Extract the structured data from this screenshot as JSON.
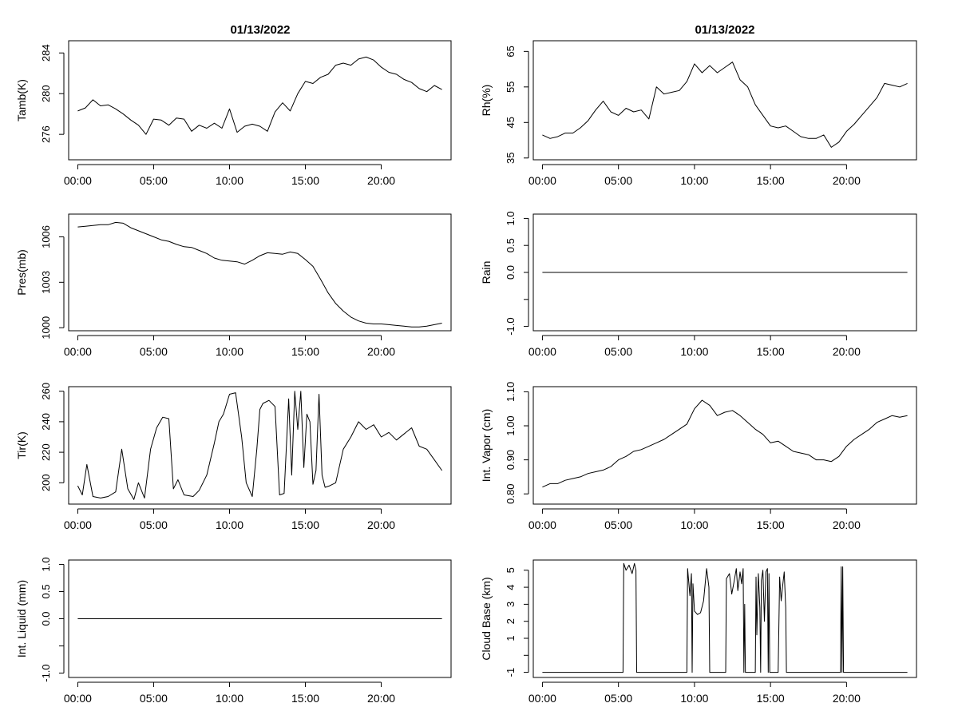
{
  "figure": {
    "titles": [
      "01/13/2022",
      "01/13/2022"
    ]
  },
  "chart_data": [
    {
      "type": "line",
      "title": "01/13/2022",
      "xlabel": "",
      "ylabel": "Tamb(K)",
      "x_ticks": [
        "00:00",
        "05:00",
        "10:00",
        "15:00",
        "20:00"
      ],
      "x_tick_values": [
        0,
        5,
        10,
        15,
        20
      ],
      "xlim": [
        -0.6,
        24.6
      ],
      "y_ticks": [
        276,
        280,
        284
      ],
      "ylim": [
        273.5,
        285.2
      ],
      "series": [
        {
          "x": [
            0,
            0.5,
            1,
            1.5,
            2,
            2.5,
            3,
            3.5,
            4,
            4.5,
            5,
            5.5,
            6,
            6.5,
            7,
            7.5,
            8,
            8.5,
            9,
            9.5,
            10,
            10.5,
            11,
            11.5,
            12,
            12.5,
            13,
            13.5,
            14,
            14.5,
            15,
            15.5,
            16,
            16.5,
            17,
            17.5,
            18,
            18.5,
            19,
            19.5,
            20,
            20.5,
            21,
            21.5,
            22,
            22.5,
            23,
            23.5,
            24
          ],
          "y": [
            278.3,
            278.6,
            279.4,
            278.8,
            278.9,
            278.5,
            278.0,
            277.4,
            276.9,
            276.0,
            277.5,
            277.4,
            276.9,
            277.6,
            277.5,
            276.3,
            276.9,
            276.6,
            277.1,
            276.6,
            278.5,
            276.2,
            276.8,
            277.0,
            276.8,
            276.3,
            278.2,
            279.1,
            278.3,
            280.0,
            281.2,
            281.0,
            281.6,
            281.9,
            282.8,
            283.0,
            282.8,
            283.4,
            283.6,
            283.3,
            282.6,
            282.1,
            281.9,
            281.4,
            281.1,
            280.5,
            280.2,
            280.8,
            280.4
          ]
        }
      ]
    },
    {
      "type": "line",
      "title": "01/13/2022",
      "xlabel": "",
      "ylabel": "Rh(%)",
      "x_ticks": [
        "00:00",
        "05:00",
        "10:00",
        "15:00",
        "20:00"
      ],
      "x_tick_values": [
        0,
        5,
        10,
        15,
        20
      ],
      "xlim": [
        -0.6,
        24.6
      ],
      "y_ticks": [
        35,
        45,
        55,
        65
      ],
      "ylim": [
        34.5,
        68
      ],
      "series": [
        {
          "x": [
            0,
            0.5,
            1,
            1.5,
            2,
            2.5,
            3,
            3.5,
            4,
            4.5,
            5,
            5.5,
            6,
            6.5,
            7,
            7.5,
            8,
            8.5,
            9,
            9.5,
            10,
            10.5,
            11,
            11.5,
            12,
            12.5,
            13,
            13.5,
            14,
            14.5,
            15,
            15.5,
            16,
            16.5,
            17,
            17.5,
            18,
            18.5,
            19,
            19.5,
            20,
            20.5,
            21,
            21.5,
            22,
            22.5,
            23,
            23.5,
            24
          ],
          "y": [
            41.5,
            40.5,
            41.0,
            42.0,
            42.0,
            43.5,
            45.5,
            48.5,
            51.0,
            48.0,
            47.0,
            49.0,
            48.0,
            48.5,
            46.0,
            55.0,
            53.0,
            53.5,
            54.0,
            56.5,
            61.5,
            59.0,
            61.0,
            59.0,
            60.5,
            62.0,
            57.0,
            55.0,
            50.0,
            47.0,
            44.0,
            43.5,
            44.0,
            42.5,
            41.0,
            40.5,
            40.5,
            41.5,
            38.0,
            39.5,
            42.5,
            44.5,
            47.0,
            49.5,
            52.0,
            56.0,
            55.5,
            55.0,
            56.0
          ]
        }
      ]
    },
    {
      "type": "line",
      "title": "",
      "xlabel": "",
      "ylabel": "Pres(mb)",
      "x_ticks": [
        "00:00",
        "05:00",
        "10:00",
        "15:00",
        "20:00"
      ],
      "x_tick_values": [
        0,
        5,
        10,
        15,
        20
      ],
      "xlim": [
        -0.6,
        24.6
      ],
      "y_ticks": [
        1000,
        1003,
        1006
      ],
      "ylim": [
        999.8,
        1007.5
      ],
      "series": [
        {
          "x": [
            0,
            0.5,
            1,
            1.5,
            2,
            2.5,
            3,
            3.5,
            4,
            4.5,
            5,
            5.5,
            6,
            6.5,
            7,
            7.5,
            8,
            8.5,
            9,
            9.5,
            10,
            10.5,
            11,
            11.5,
            12,
            12.5,
            13,
            13.5,
            14,
            14.5,
            15,
            15.5,
            16,
            16.5,
            17,
            17.5,
            18,
            18.5,
            19,
            19.5,
            20,
            20.5,
            21,
            21.5,
            22,
            22.5,
            23,
            23.5,
            24
          ],
          "y": [
            1006.65,
            1006.7,
            1006.75,
            1006.8,
            1006.8,
            1006.95,
            1006.9,
            1006.6,
            1006.4,
            1006.2,
            1006.0,
            1005.8,
            1005.7,
            1005.5,
            1005.35,
            1005.3,
            1005.1,
            1004.9,
            1004.6,
            1004.45,
            1004.4,
            1004.35,
            1004.2,
            1004.45,
            1004.75,
            1004.95,
            1004.9,
            1004.85,
            1005.0,
            1004.9,
            1004.5,
            1004.05,
            1003.2,
            1002.3,
            1001.6,
            1001.1,
            1000.7,
            1000.45,
            1000.3,
            1000.25,
            1000.25,
            1000.2,
            1000.15,
            1000.1,
            1000.05,
            1000.05,
            1000.1,
            1000.2,
            1000.3
          ]
        }
      ]
    },
    {
      "type": "line",
      "title": "",
      "xlabel": "",
      "ylabel": "Rain",
      "x_ticks": [
        "00:00",
        "05:00",
        "10:00",
        "15:00",
        "20:00"
      ],
      "x_tick_values": [
        0,
        5,
        10,
        15,
        20
      ],
      "xlim": [
        -0.6,
        24.6
      ],
      "y_ticks": [
        -1.0,
        0.0,
        0.5,
        1.0
      ],
      "y_tick_labels": [
        "-1.0",
        "0.0",
        "0.5",
        "1.0"
      ],
      "extra_y_ticks": [
        -0.5
      ],
      "ylim": [
        -1.08,
        1.08
      ],
      "series": [
        {
          "x": [
            0,
            24
          ],
          "y": [
            0,
            0
          ]
        }
      ]
    },
    {
      "type": "line",
      "title": "",
      "xlabel": "",
      "ylabel": "Tir(K)",
      "x_ticks": [
        "00:00",
        "05:00",
        "10:00",
        "15:00",
        "20:00"
      ],
      "x_tick_values": [
        0,
        5,
        10,
        15,
        20
      ],
      "xlim": [
        -0.6,
        24.6
      ],
      "y_ticks": [
        200,
        220,
        240,
        260
      ],
      "ylim": [
        186,
        263
      ],
      "series": [
        {
          "x": [
            0,
            0.3,
            0.6,
            1.0,
            1.5,
            2.0,
            2.5,
            2.9,
            3.3,
            3.7,
            4.0,
            4.4,
            4.8,
            5.2,
            5.6,
            6.0,
            6.3,
            6.6,
            7.0,
            7.6,
            8.0,
            8.5,
            9.0,
            9.3,
            9.6,
            10.0,
            10.4,
            10.8,
            11.1,
            11.5,
            11.8,
            12.0,
            12.2,
            12.6,
            13.0,
            13.3,
            13.6,
            13.9,
            14.1,
            14.3,
            14.5,
            14.7,
            14.9,
            15.1,
            15.3,
            15.5,
            15.7,
            15.9,
            16.1,
            16.3,
            16.6,
            17.0,
            17.5,
            18.0,
            18.5,
            19.0,
            19.5,
            20.0,
            20.5,
            21.0,
            21.5,
            22.0,
            22.5,
            23.0,
            23.5,
            24.0
          ],
          "y": [
            198,
            192,
            212,
            191,
            190,
            191,
            194,
            222,
            196,
            189,
            200,
            190,
            222,
            236,
            243,
            242,
            196,
            202,
            192,
            191,
            195,
            205,
            226,
            240,
            245,
            258,
            259,
            230,
            200,
            191,
            222,
            248,
            252,
            254,
            250,
            192,
            193,
            255,
            205,
            260,
            235,
            260,
            210,
            245,
            240,
            199,
            208,
            258,
            205,
            197,
            198,
            200,
            222,
            230,
            240,
            235,
            238,
            230,
            233,
            228,
            232,
            236,
            224,
            222,
            215,
            208
          ]
        }
      ]
    },
    {
      "type": "line",
      "title": "",
      "xlabel": "",
      "ylabel": "Int. Vapor (cm)",
      "x_ticks": [
        "00:00",
        "05:00",
        "10:00",
        "15:00",
        "20:00"
      ],
      "x_tick_values": [
        0,
        5,
        10,
        15,
        20
      ],
      "xlim": [
        -0.6,
        24.6
      ],
      "y_ticks": [
        0.8,
        0.9,
        1.0,
        1.1
      ],
      "y_tick_labels": [
        "0.80",
        "0.90",
        "1.00",
        "1.10"
      ],
      "ylim": [
        0.77,
        1.115
      ],
      "series": [
        {
          "x": [
            0,
            0.5,
            1,
            1.5,
            2,
            2.5,
            3,
            3.5,
            4,
            4.5,
            5,
            5.5,
            6,
            6.5,
            7,
            7.5,
            8,
            8.5,
            9,
            9.5,
            10,
            10.5,
            11,
            11.5,
            12,
            12.5,
            13,
            13.5,
            14,
            14.5,
            15,
            15.5,
            16,
            16.5,
            17,
            17.5,
            18,
            18.5,
            19,
            19.5,
            20,
            20.5,
            21,
            21.5,
            22,
            22.5,
            23,
            23.5,
            24
          ],
          "y": [
            0.82,
            0.83,
            0.83,
            0.84,
            0.845,
            0.85,
            0.86,
            0.865,
            0.87,
            0.88,
            0.9,
            0.91,
            0.925,
            0.93,
            0.94,
            0.95,
            0.96,
            0.975,
            0.99,
            1.005,
            1.05,
            1.075,
            1.06,
            1.03,
            1.04,
            1.045,
            1.03,
            1.01,
            0.99,
            0.975,
            0.95,
            0.955,
            0.94,
            0.925,
            0.92,
            0.915,
            0.9,
            0.9,
            0.895,
            0.91,
            0.94,
            0.96,
            0.975,
            0.99,
            1.01,
            1.02,
            1.03,
            1.025,
            1.03
          ]
        }
      ]
    },
    {
      "type": "line",
      "title": "",
      "xlabel": "",
      "ylabel": "Int. Liquid (mm)",
      "x_ticks": [
        "00:00",
        "05:00",
        "10:00",
        "15:00",
        "20:00"
      ],
      "x_tick_values": [
        0,
        5,
        10,
        15,
        20
      ],
      "xlim": [
        -0.6,
        24.6
      ],
      "y_ticks": [
        -1.0,
        0.0,
        0.5,
        1.0
      ],
      "y_tick_labels": [
        "-1.0",
        "0.0",
        "0.5",
        "1.0"
      ],
      "extra_y_ticks": [
        -0.5
      ],
      "ylim": [
        -1.08,
        1.08
      ],
      "series": [
        {
          "x": [
            0,
            24
          ],
          "y": [
            0,
            0
          ]
        }
      ]
    },
    {
      "type": "line",
      "title": "",
      "xlabel": "",
      "ylabel": "Cloud Base (km)",
      "x_ticks": [
        "00:00",
        "05:00",
        "10:00",
        "15:00",
        "20:00"
      ],
      "x_tick_values": [
        0,
        5,
        10,
        15,
        20
      ],
      "xlim": [
        -0.6,
        24.6
      ],
      "y_ticks": [
        -1,
        1,
        2,
        3,
        4,
        5
      ],
      "extra_y_ticks": [
        0
      ],
      "ylim": [
        -1.3,
        5.6
      ],
      "series": [
        {
          "x": [
            0,
            5.3,
            5.35,
            5.5,
            5.7,
            5.9,
            6.05,
            6.15,
            6.2,
            6.25,
            9.5,
            9.55,
            9.7,
            9.8,
            9.85,
            9.9,
            10.0,
            10.2,
            10.4,
            10.6,
            10.8,
            10.95,
            11.0,
            11.05,
            12.05,
            12.1,
            12.3,
            12.45,
            12.6,
            12.75,
            12.85,
            13.0,
            13.1,
            13.2,
            13.25,
            13.3,
            13.35,
            14.0,
            14.05,
            14.1,
            14.2,
            14.3,
            14.35,
            14.4,
            14.5,
            14.6,
            14.7,
            14.8,
            14.85,
            14.9,
            14.95,
            15.5,
            15.6,
            15.7,
            15.8,
            15.9,
            16.0,
            16.05,
            19.6,
            19.65,
            19.7,
            19.75,
            19.8,
            24
          ],
          "y": [
            -1,
            -1,
            5.4,
            5.0,
            5.3,
            4.8,
            5.4,
            5.0,
            -1,
            -1,
            -1,
            5.1,
            3.5,
            4.8,
            -1,
            4.2,
            2.6,
            2.4,
            2.5,
            3.2,
            5.1,
            4.0,
            -1,
            -1,
            -1,
            4.5,
            4.8,
            3.6,
            4.3,
            5.1,
            3.8,
            4.9,
            4.2,
            5.1,
            -1,
            3.0,
            -1,
            -1,
            4.6,
            1.2,
            4.8,
            2.8,
            -1,
            4.4,
            5.0,
            2.0,
            4.9,
            5.1,
            -1,
            4.8,
            -1,
            -1,
            4.6,
            3.2,
            4.1,
            4.9,
            2.8,
            -1,
            -1,
            5.2,
            -1,
            5.2,
            -1,
            -1
          ]
        }
      ]
    }
  ]
}
